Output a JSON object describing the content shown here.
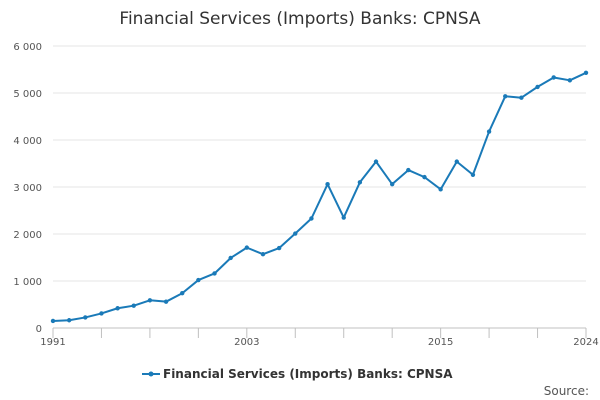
{
  "chart_data": {
    "type": "line",
    "title": "Financial Services (Imports) Banks: CPNSA",
    "xlabel": "",
    "ylabel": "",
    "x": [
      1991,
      1992,
      1993,
      1994,
      1995,
      1996,
      1997,
      1998,
      1999,
      2000,
      2001,
      2002,
      2003,
      2004,
      2005,
      2006,
      2007,
      2008,
      2009,
      2010,
      2011,
      2012,
      2013,
      2014,
      2015,
      2016,
      2017,
      2018,
      2019,
      2020,
      2021,
      2022,
      2023,
      2024
    ],
    "series": [
      {
        "name": "Financial Services (Imports) Banks: CPNSA",
        "color": "#1a7ab8",
        "values": [
          150,
          165,
          225,
          310,
          420,
          475,
          590,
          560,
          740,
          1020,
          1160,
          1490,
          1710,
          1570,
          1700,
          2010,
          2330,
          3060,
          2350,
          3100,
          3540,
          3060,
          3360,
          3210,
          2950,
          3540,
          3260,
          4180,
          4930,
          4900,
          5130,
          5330,
          5270,
          5430
        ]
      }
    ],
    "xlim": [
      1991,
      2024
    ],
    "ylim": [
      0,
      6000
    ],
    "x_tick_labels": [
      "1991",
      "2003",
      "2015",
      "2024"
    ],
    "x_tick_label_values": [
      1991,
      2003,
      2015,
      2024
    ],
    "x_tick_marks": [
      1991,
      1994,
      1997,
      2000,
      2003,
      2006,
      2009,
      2012,
      2015,
      2018,
      2021,
      2024
    ],
    "y_ticks": [
      0,
      1000,
      2000,
      3000,
      4000,
      5000,
      6000
    ],
    "y_tick_labels": [
      "0",
      "1 000",
      "2 000",
      "3 000",
      "4 000",
      "5 000",
      "6 000"
    ],
    "grid": true,
    "legend_position": "bottom-center"
  },
  "footer": {
    "source_label": "Source:"
  }
}
